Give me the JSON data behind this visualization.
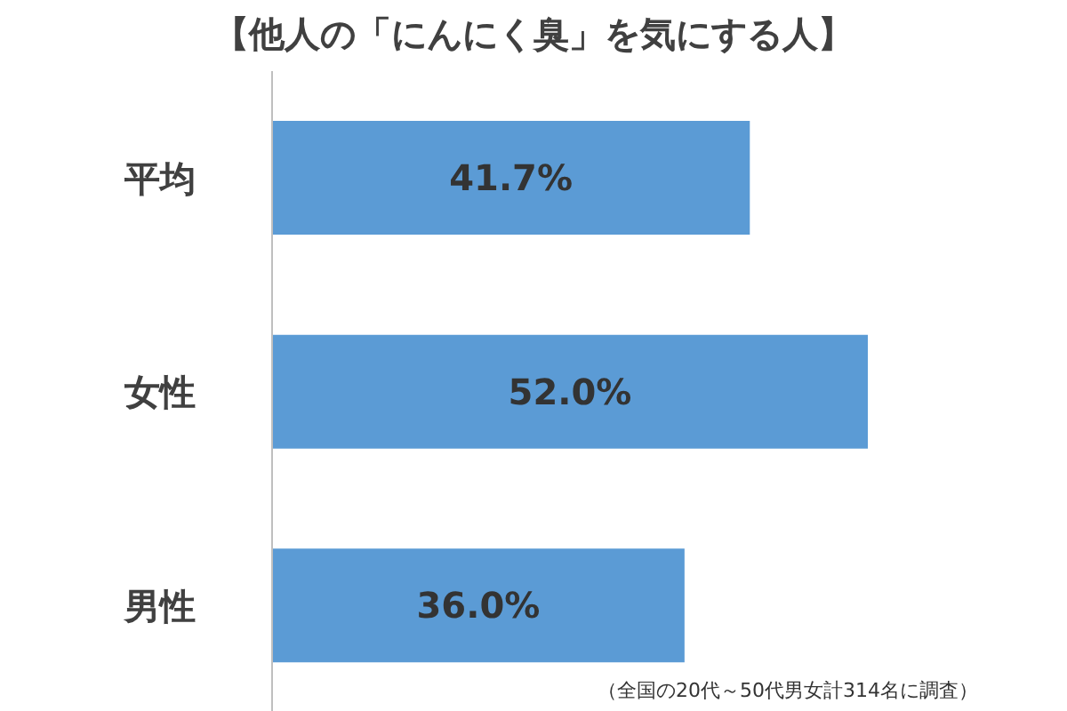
{
  "chart_data": {
    "type": "bar",
    "orientation": "horizontal",
    "title": "【他人の「にんにく臭」を気にする人】",
    "categories": [
      "平均",
      "女性",
      "男性"
    ],
    "values": [
      41.7,
      52.0,
      36.0
    ],
    "value_labels": [
      "41.7%",
      "52.0%",
      "36.0%"
    ],
    "color": "#5b9bd5",
    "tick_labels": "y",
    "annotations": [
      "（全国の20代～50代男女計314名に調査）"
    ]
  }
}
